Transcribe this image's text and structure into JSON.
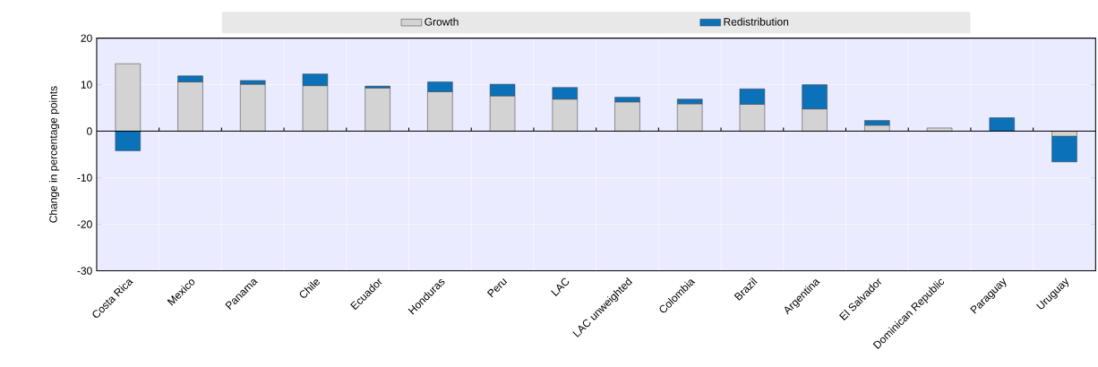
{
  "chart_data": {
    "type": "bar",
    "stacked": true,
    "ylabel": "Change in percentage points",
    "categories": [
      "Costa Rica",
      "Mexico",
      "Panama",
      "Chile",
      "Ecuador",
      "Honduras",
      "Peru",
      "LAC",
      "LAC unweighted",
      "Colombia",
      "Brazil",
      "Argentina",
      "El Salvador",
      "Dominican Republic",
      "Paraguay",
      "Uruguay"
    ],
    "series": [
      {
        "name": "Growth",
        "color": "#d3d3d3",
        "values": [
          14.5,
          10.6,
          10.1,
          9.8,
          9.3,
          8.5,
          7.6,
          6.9,
          6.3,
          5.9,
          5.8,
          4.8,
          1.3,
          0.7,
          null,
          -1.1
        ]
      },
      {
        "name": "Redistribution",
        "color": "#0b72b9",
        "values": [
          -4.2,
          1.3,
          0.8,
          2.5,
          0.4,
          2.1,
          2.5,
          2.5,
          1.0,
          1.0,
          3.3,
          5.2,
          1.0,
          null,
          2.9,
          -5.5
        ]
      }
    ],
    "ylim": [
      -30,
      20
    ],
    "yticks": [
      -30,
      -20,
      -10,
      0,
      10,
      20
    ],
    "grid": true,
    "legend": "top"
  }
}
